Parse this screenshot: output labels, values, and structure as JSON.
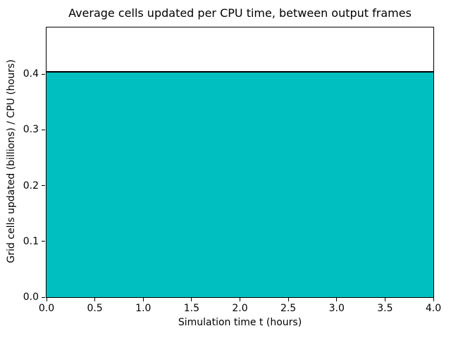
{
  "chart_data": {
    "type": "area",
    "title": "Average cells updated per CPU time, between output frames",
    "xlabel": "Simulation time t (hours)",
    "ylabel": "Grid cells updated (billions) / CPU (hours)",
    "series": [
      {
        "name": "average cells updated per CPU time",
        "x": [
          0.0,
          4.0
        ],
        "values": [
          0.404,
          0.404
        ]
      }
    ],
    "constant_value": 0.404,
    "xlim": [
      0.0,
      4.0
    ],
    "ylim": [
      0.0,
      0.4835
    ],
    "xticks": [
      0.0,
      0.5,
      1.0,
      1.5,
      2.0,
      2.5,
      3.0,
      3.5,
      4.0
    ],
    "xtick_labels": [
      "0.0",
      "0.5",
      "1.0",
      "1.5",
      "2.0",
      "2.5",
      "3.0",
      "3.5",
      "4.0"
    ],
    "yticks": [
      0.0,
      0.1,
      0.2,
      0.3,
      0.4
    ],
    "ytick_labels": [
      "0.0",
      "0.1",
      "0.2",
      "0.3",
      "0.4"
    ],
    "grid": false,
    "legend": false,
    "fill_color": "#00bfc0",
    "line_color": "#000000",
    "spine_color": "#000000",
    "background_color": "#ffffff"
  }
}
